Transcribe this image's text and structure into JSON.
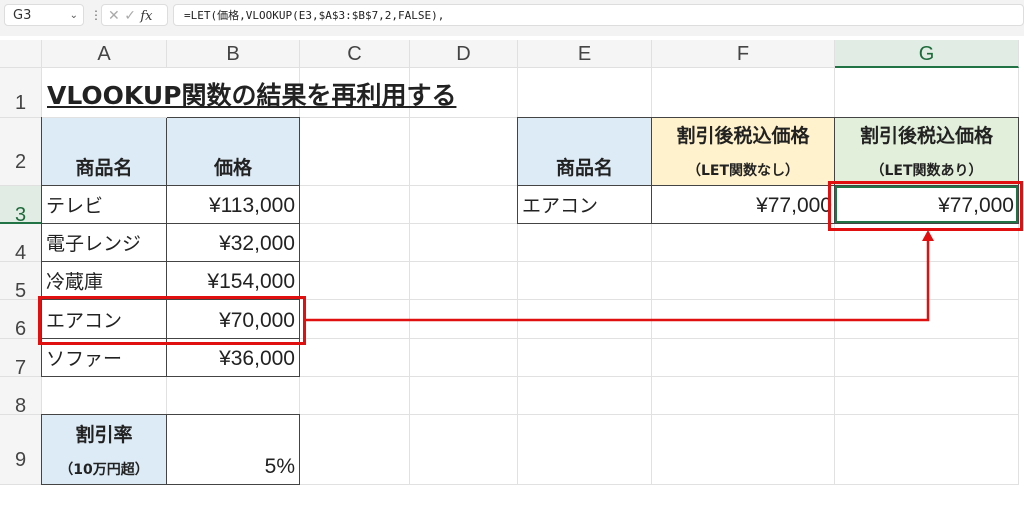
{
  "formula_bar": {
    "name_box": "G3",
    "fx": "fx",
    "formula": "=LET(価格,VLOOKUP(E3,$A$3:$B$7,2,FALSE),"
  },
  "columns": [
    "A",
    "B",
    "C",
    "D",
    "E",
    "F",
    "G"
  ],
  "rows": [
    "1",
    "2",
    "3",
    "4",
    "5",
    "6",
    "7",
    "8",
    "9"
  ],
  "selected_cell": "G3",
  "colors": {
    "header_blue": "#ddebf7",
    "header_yellow": "#fff2cc",
    "header_green": "#e2efda",
    "highlight": "#e01010",
    "selection": "#217346"
  },
  "cells": {
    "A1": {
      "text": "VLOOKUP関数の結果を再利用する"
    },
    "A2": {
      "text": "商品名"
    },
    "B2": {
      "text": "価格"
    },
    "A3": {
      "text": "テレビ"
    },
    "B3": {
      "text": "¥113,000"
    },
    "A4": {
      "text": "電子レンジ"
    },
    "B4": {
      "text": "¥32,000"
    },
    "A5": {
      "text": "冷蔵庫"
    },
    "B5": {
      "text": "¥154,000"
    },
    "A6": {
      "text": "エアコン"
    },
    "B6": {
      "text": "¥70,000"
    },
    "A7": {
      "text": "ソファー"
    },
    "B7": {
      "text": "¥36,000"
    },
    "A9": {
      "text": "割引率",
      "sub": "（10万円超）"
    },
    "B9": {
      "text": "5%"
    },
    "E2": {
      "text": "商品名"
    },
    "F2": {
      "text": "割引後税込価格",
      "sub": "（LET関数なし）"
    },
    "G2": {
      "text": "割引後税込価格",
      "sub": "（LET関数あり）"
    },
    "E3": {
      "text": "エアコン"
    },
    "F3": {
      "text": "¥77,000"
    },
    "G3": {
      "text": "¥77,000"
    }
  }
}
